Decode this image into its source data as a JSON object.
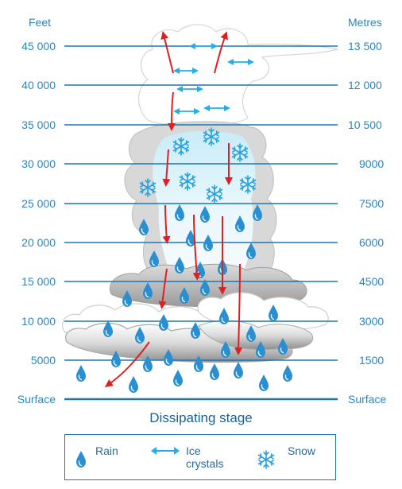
{
  "axis": {
    "left_title": "Feet",
    "right_title": "Metres",
    "left_ticks": [
      "45 000",
      "40 000",
      "35 000",
      "30 000",
      "25 000",
      "20 000",
      "15 000",
      "10 000",
      "5000",
      "Surface"
    ],
    "right_ticks": [
      "13 500",
      "12 000",
      "10 500",
      "9000",
      "7500",
      "6000",
      "4500",
      "3000",
      "1500",
      "Surface"
    ]
  },
  "caption": "Dissipating stage",
  "legend": {
    "rain": "Rain",
    "ice_line1": "Ice",
    "ice_line2": "crystals",
    "snow": "Snow"
  },
  "colors": {
    "text_blue": "#2a86c1",
    "line_blue": "#1e77b0",
    "arrow_red": "#e02020",
    "ice_arrow": "#22aee6",
    "drop_blue": "#2a8fd0",
    "cloud_grey": "#b9b9b9"
  }
}
